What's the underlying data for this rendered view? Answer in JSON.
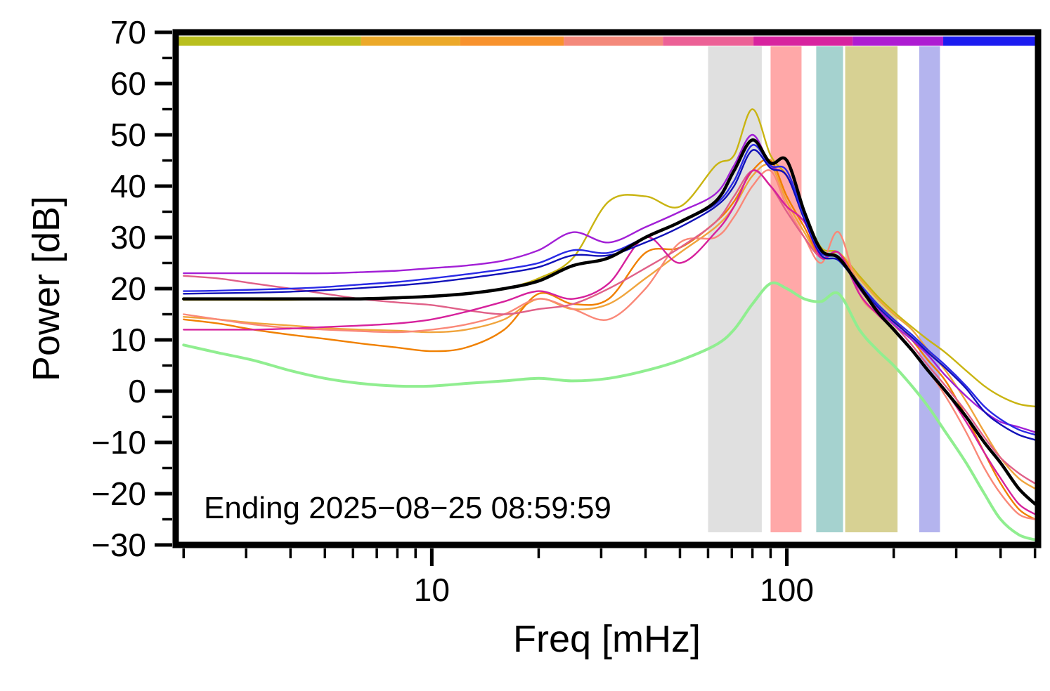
{
  "figure": {
    "background": "#ffffff",
    "frame_color": "#000000"
  },
  "chart_data": {
    "type": "line",
    "title": "",
    "xlabel": "Freq [mHz]",
    "ylabel": "Power [dB]",
    "x_scale": "log",
    "xlim": [
      1.9,
      510
    ],
    "ylim": [
      -30,
      70
    ],
    "grid": false,
    "legend": "none",
    "annotation": "Ending 2025−08−25 08:59:59",
    "y_major_ticks": [
      -30,
      -20,
      -10,
      0,
      10,
      20,
      30,
      40,
      50,
      60,
      70
    ],
    "y_minor_step": 5,
    "x_major_ticks": [
      10,
      100
    ],
    "x_minor_ticks": [
      2,
      3,
      4,
      5,
      6,
      7,
      8,
      9,
      20,
      30,
      40,
      50,
      60,
      70,
      80,
      90,
      200,
      300,
      400,
      500
    ],
    "top_color_bar": [
      {
        "color": "#b9bf1e",
        "to": 0.215
      },
      {
        "color": "#eca929",
        "to": 0.33
      },
      {
        "color": "#f8922d",
        "to": 0.45
      },
      {
        "color": "#f4897b",
        "to": 0.565
      },
      {
        "color": "#ec6196",
        "to": 0.67
      },
      {
        "color": "#d8239f",
        "to": 0.785
      },
      {
        "color": "#ae1cd2",
        "to": 0.89
      },
      {
        "color": "#1b1bf0",
        "to": 1.0
      }
    ],
    "bands": [
      {
        "name": "gray",
        "color": "#e0e0e0",
        "from": 60,
        "to": 85
      },
      {
        "name": "red",
        "color": "#ffa8a8",
        "from": 90,
        "to": 110
      },
      {
        "name": "teal",
        "color": "#a5d2cf",
        "from": 121,
        "to": 144
      },
      {
        "name": "khaki",
        "color": "#d7d193",
        "from": 146,
        "to": 205
      },
      {
        "name": "lavender",
        "color": "#b4b4ee",
        "from": 236,
        "to": 270
      }
    ],
    "x": [
      2,
      2.5,
      3.15,
      4,
      5,
      6.3,
      8,
      10,
      12.5,
      16,
      20,
      25,
      31.5,
      40,
      50,
      63,
      71,
      80,
      90,
      100,
      112,
      125,
      140,
      160,
      180,
      200,
      225,
      250,
      280,
      320,
      360,
      400,
      450,
      500
    ],
    "series": [
      {
        "name": "gold",
        "color": "#c9b411",
        "width": 2.4,
        "values": [
          17.8,
          17.8,
          17.8,
          17.8,
          17.9,
          18,
          18.2,
          18.5,
          19,
          20,
          22,
          26,
          37,
          38,
          36,
          44,
          46,
          55,
          46,
          42,
          35,
          28,
          27,
          22.5,
          18.5,
          15.5,
          12.5,
          10,
          7.5,
          4,
          1,
          -1,
          -2.5,
          -3
        ]
      },
      {
        "name": "amber",
        "color": "#f0a43c",
        "width": 2.4,
        "values": [
          14.5,
          14,
          13.3,
          12.8,
          12.3,
          12,
          11.8,
          11.5,
          12,
          14,
          18,
          16,
          17,
          22,
          27,
          32,
          36,
          42,
          44,
          37,
          31,
          26,
          27,
          22,
          18,
          15,
          12,
          8,
          4,
          -2,
          -8,
          -13,
          -17,
          -19
        ]
      },
      {
        "name": "orange",
        "color": "#f08000",
        "width": 2.4,
        "values": [
          14,
          13.2,
          12,
          11,
          10.2,
          9.3,
          8.5,
          7.8,
          8.5,
          12,
          19,
          17,
          18,
          27,
          28,
          33,
          37,
          43,
          45,
          38,
          32,
          26,
          27,
          21,
          17,
          14,
          10,
          6,
          2,
          -5,
          -12,
          -18,
          -23,
          -25
        ]
      },
      {
        "name": "salmon",
        "color": "#fa8878",
        "width": 2.4,
        "values": [
          15,
          14,
          13,
          12.3,
          12,
          11.7,
          11.5,
          12,
          13,
          15,
          18,
          16,
          14,
          20,
          29,
          30,
          34,
          40,
          43,
          36,
          30,
          25,
          31,
          19,
          15,
          12,
          8,
          4,
          -1,
          -8,
          -15,
          -20,
          -24,
          -25
        ]
      },
      {
        "name": "rose",
        "color": "#e06088",
        "width": 2.4,
        "values": [
          22.5,
          22,
          21,
          20,
          19,
          18,
          17.3,
          16.8,
          15.8,
          15,
          16,
          17,
          20,
          24,
          28,
          33,
          38,
          43,
          40,
          35,
          30,
          26,
          27,
          20,
          16,
          13,
          9,
          5,
          1,
          -4,
          -9,
          -13,
          -16,
          -18
        ]
      },
      {
        "name": "magenta",
        "color": "#d6219c",
        "width": 2.4,
        "values": [
          12,
          12,
          12,
          12.2,
          12.5,
          12.8,
          13.2,
          14,
          15.5,
          17.5,
          19.5,
          18,
          21,
          30,
          25,
          31,
          36,
          43,
          40,
          36,
          33,
          26,
          27,
          19,
          15,
          12,
          8,
          4,
          0,
          -6,
          -12,
          -17,
          -22,
          -24
        ]
      },
      {
        "name": "purple",
        "color": "#a21fd6",
        "width": 2.4,
        "values": [
          23,
          23,
          23,
          23,
          23,
          23.2,
          23.5,
          24,
          24.5,
          25.5,
          27.5,
          31,
          29,
          32,
          35,
          38.5,
          44,
          50,
          44,
          42,
          34,
          27,
          26,
          20,
          16,
          13,
          10,
          7,
          3,
          -1,
          -4,
          -6,
          -7,
          -8
        ]
      },
      {
        "name": "navy",
        "color": "#1010b8",
        "width": 2.4,
        "values": [
          19,
          19.1,
          19.2,
          19.4,
          19.7,
          20.1,
          20.6,
          21.2,
          22,
          23,
          24.2,
          26.5,
          26.5,
          29,
          32,
          36,
          40,
          47,
          43.5,
          42,
          33.5,
          26.5,
          25.5,
          20.5,
          16.5,
          13.5,
          10.5,
          7.5,
          4.5,
          0.5,
          -4,
          -6.5,
          -8.5,
          -9.5
        ]
      },
      {
        "name": "blue",
        "color": "#2a2ae6",
        "width": 2.4,
        "values": [
          19.5,
          19.6,
          19.8,
          20,
          20.3,
          20.8,
          21.3,
          22,
          22.8,
          23.8,
          25,
          27.5,
          27,
          30,
          33,
          36.5,
          41,
          48,
          44,
          43,
          34,
          27,
          26,
          21,
          17,
          14,
          11,
          8,
          5,
          1,
          -3,
          -5.5,
          -7.5,
          -8.5
        ]
      },
      {
        "name": "green",
        "color": "#90ee90",
        "width": 4,
        "values": [
          9,
          7.5,
          6,
          4,
          2.5,
          1.5,
          1,
          1,
          1.5,
          2,
          2.5,
          2,
          2.5,
          4,
          6,
          9,
          12,
          17,
          21,
          20,
          18,
          17.5,
          19,
          12,
          8,
          5,
          1,
          -3,
          -8,
          -14,
          -20,
          -25,
          -28,
          -29
        ]
      },
      {
        "name": "mean",
        "color": "#000000",
        "width": 4.5,
        "values": [
          18,
          18,
          18,
          18,
          18,
          18,
          18.2,
          18.5,
          19,
          20,
          21.5,
          24.5,
          26,
          30,
          33,
          37,
          43,
          49,
          44.5,
          45,
          35,
          27.5,
          26,
          20.5,
          15.5,
          12,
          8,
          4,
          0,
          -5,
          -10,
          -14,
          -19,
          -22
        ]
      }
    ]
  }
}
